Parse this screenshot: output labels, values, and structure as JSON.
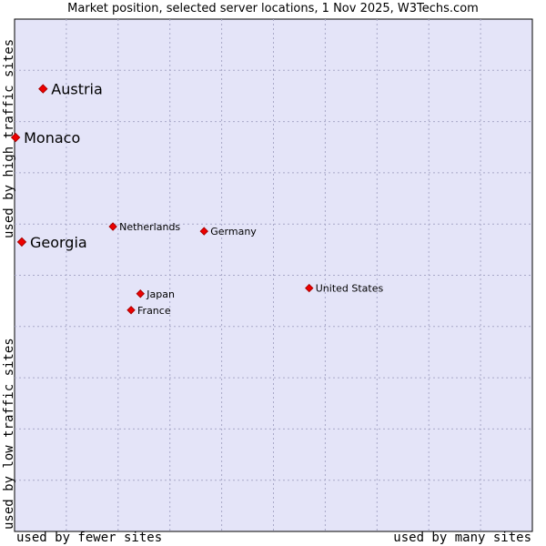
{
  "chart_data": {
    "type": "scatter",
    "title": "Market position, selected server locations, 1 Nov 2025, W3Techs.com",
    "xlabel_low": "used by fewer sites",
    "xlabel_high": "used by many sites",
    "ylabel_low": "used by low traffic sites",
    "ylabel_high": "used by high traffic sites",
    "xlim": [
      0,
      100
    ],
    "ylim": [
      0,
      100
    ],
    "grid": true,
    "points": [
      {
        "name": "Austria",
        "x": 5.5,
        "y": 86.4,
        "emphasis": "large"
      },
      {
        "name": "Monaco",
        "x": 0.2,
        "y": 76.9,
        "emphasis": "large"
      },
      {
        "name": "Georgia",
        "x": 1.4,
        "y": 56.5,
        "emphasis": "large"
      },
      {
        "name": "Netherlands",
        "x": 19.0,
        "y": 59.5,
        "emphasis": "small"
      },
      {
        "name": "Germany",
        "x": 36.6,
        "y": 58.6,
        "emphasis": "small"
      },
      {
        "name": "United States",
        "x": 56.9,
        "y": 47.5,
        "emphasis": "small"
      },
      {
        "name": "Japan",
        "x": 24.3,
        "y": 46.4,
        "emphasis": "small"
      },
      {
        "name": "France",
        "x": 22.5,
        "y": 43.2,
        "emphasis": "small"
      }
    ]
  },
  "colors": {
    "plot_background": "#e4e4f8",
    "grid": "#a8a8c8",
    "marker": "#ee0000",
    "marker_stroke": "#aa0000"
  }
}
